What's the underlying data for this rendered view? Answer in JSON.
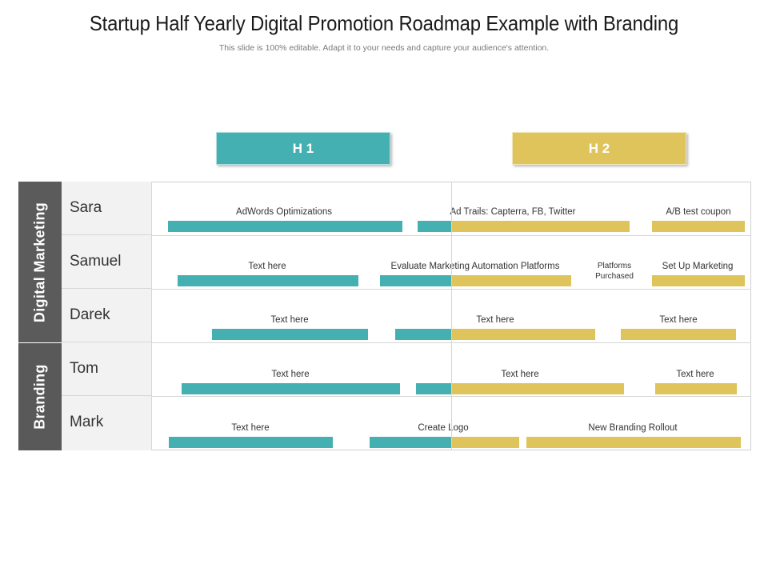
{
  "title": "Startup Half Yearly Digital Promotion Roadmap Example with Branding",
  "subtitle": "This slide is 100% editable. Adapt it to your needs and capture your audience's attention.",
  "colors": {
    "teal": "#45b0b1",
    "gold": "#dfc45b",
    "group_bg": "#5b5b5b"
  },
  "phases": [
    {
      "label": "H 1"
    },
    {
      "label": "H 2"
    }
  ],
  "groups": [
    {
      "label": "Digital Marketing"
    },
    {
      "label": "Branding"
    }
  ],
  "rows": [
    {
      "name": "Sara",
      "tasks": [
        {
          "label": "AdWords Optimizations"
        },
        {
          "label": "Ad Trails: Capterra, FB, Twitter"
        },
        {
          "label": "A/B test coupon"
        }
      ]
    },
    {
      "name": "Samuel",
      "tasks": [
        {
          "label": "Text here"
        },
        {
          "label": "Evaluate Marketing Automation Platforms"
        },
        {
          "label": "Platforms"
        },
        {
          "label": "Purchased"
        },
        {
          "label": "Set Up Marketing"
        }
      ]
    },
    {
      "name": "Darek",
      "tasks": [
        {
          "label": "Text here"
        },
        {
          "label": "Text here"
        },
        {
          "label": "Text here"
        }
      ]
    },
    {
      "name": "Tom",
      "tasks": [
        {
          "label": "Text here"
        },
        {
          "label": "Text here"
        },
        {
          "label": "Text here"
        }
      ]
    },
    {
      "name": "Mark",
      "tasks": [
        {
          "label": "Text here"
        },
        {
          "label": "Create Logo"
        },
        {
          "label": "New Branding Rollout"
        }
      ]
    }
  ]
}
